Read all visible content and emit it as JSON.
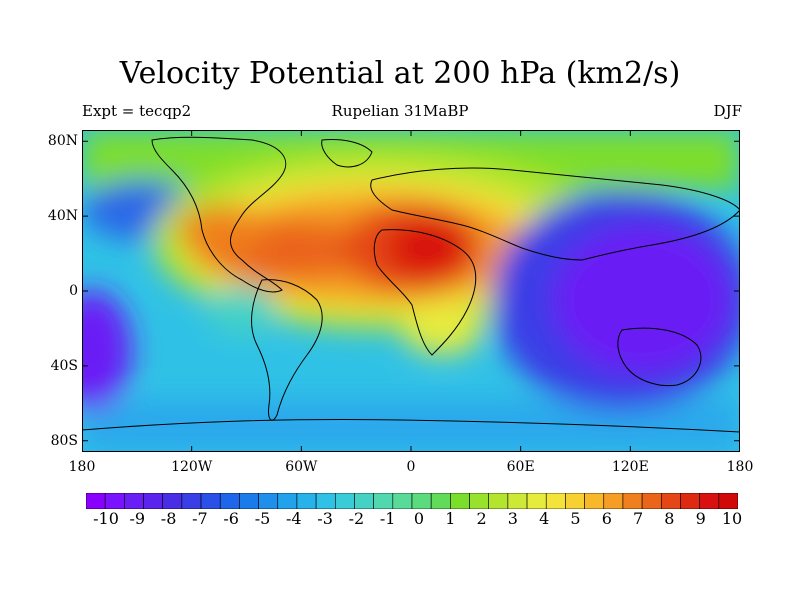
{
  "title": "Velocity Potential at 200 hPa (km2/s)",
  "left_label": "Expt = tecqp2",
  "center_label": "Rupelian  31MaBP",
  "right_label": "DJF",
  "lat_labels": [
    "80N",
    "40N",
    "0",
    "40S",
    "80S"
  ],
  "lon_labels": [
    "180",
    "120W",
    "60W",
    "0",
    "60E",
    "120E",
    "180"
  ],
  "colorbar": {
    "labels": [
      "-10",
      "-9",
      "-8",
      "-7",
      "-6",
      "-5",
      "-4",
      "-3",
      "-2",
      "-1",
      "0",
      "1",
      "2",
      "3",
      "4",
      "5",
      "6",
      "7",
      "8",
      "9",
      "10"
    ],
    "colors": [
      "#8a00ff",
      "#7a12ff",
      "#6a1ef5",
      "#5a24ec",
      "#4a2ee6",
      "#3a3ee6",
      "#2a50e8",
      "#1e66ea",
      "#1a7ceb",
      "#1e90ec",
      "#22a2ec",
      "#28b2ea",
      "#30c2e6",
      "#3acbd8",
      "#45d2c4",
      "#52d8ae",
      "#58db98",
      "#5cdb7e",
      "#62db58",
      "#7cde2c",
      "#98e12c",
      "#b4e52e",
      "#cee838",
      "#e6ec3c",
      "#f4e43a",
      "#f7d032",
      "#f8b82a",
      "#f59d24",
      "#f0801e",
      "#ea641a",
      "#e44616",
      "#df2a12",
      "#d81010",
      "#d00808"
    ]
  }
}
